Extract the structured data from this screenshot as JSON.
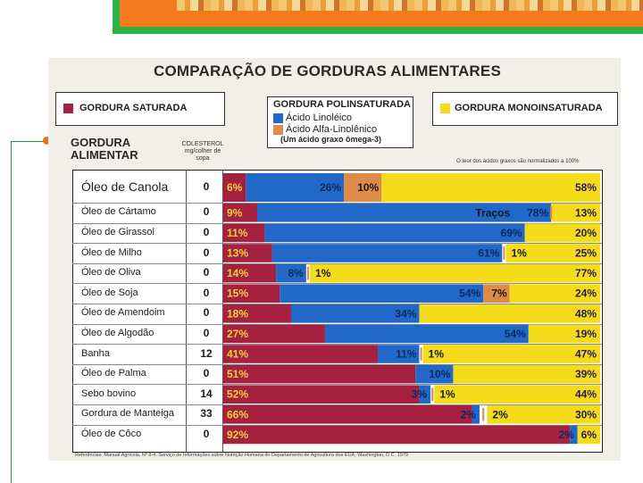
{
  "chart_data": {
    "type": "bar",
    "stacked": true,
    "normalized": true,
    "title": "COMPARAÇÃO DE GORDURAS ALIMENTARES",
    "axis_title_lines": [
      "GORDURA",
      "ALIMENTAR"
    ],
    "cholesterol_header_lines": [
      "COLESTEROL",
      "mg/colher de",
      "sopa"
    ],
    "normalization_note": "O teor dos ácidos graxos são normalizados a 100%",
    "reference": "Referências: Manual Agrícola, Nº 8-4. Serviço de Informações sobre Nutrição Humana do Departamento de Agricultura dos EUA, Washington, D.C. 1979",
    "legend": {
      "saturated": "GORDURA SATURADA",
      "poly_title": "GORDURA POLINSATURADA",
      "linoleic": "Ácido Linoléico",
      "alpha": "Ácido Alfa-Linolênico",
      "omega_note": "(Um ácido graxo ômega-3)",
      "mono": "GORDURA MONOINSATURADA"
    },
    "colors": {
      "saturated": "#a5213f",
      "linoleic": "#2168c9",
      "alpha": "#de8a48",
      "mono": "#f5dc1a"
    },
    "trace_label": "Traços",
    "rows": [
      {
        "name": "Óleo de Canola",
        "cholesterol": "0",
        "saturated": 6,
        "linoleic": 26,
        "alpha": 10,
        "mono": 58
      },
      {
        "name": "Óleo de Cártamo",
        "cholesterol": "0",
        "saturated": 9,
        "linoleic": 78,
        "alpha": 0,
        "mono": 13,
        "alpha_trace": true
      },
      {
        "name": "Óleo de Girassol",
        "cholesterol": "0",
        "saturated": 11,
        "linoleic": 69,
        "alpha": 0,
        "mono": 20
      },
      {
        "name": "Óleo de Milho",
        "cholesterol": "0",
        "saturated": 13,
        "linoleic": 61,
        "alpha": 1,
        "mono": 25
      },
      {
        "name": "Óleo de Oliva",
        "cholesterol": "0",
        "saturated": 14,
        "linoleic": 8,
        "alpha": 1,
        "mono": 77
      },
      {
        "name": "Óleo de Soja",
        "cholesterol": "0",
        "saturated": 15,
        "linoleic": 54,
        "alpha": 7,
        "mono": 24
      },
      {
        "name": "Óleo de Amendoim",
        "cholesterol": "0",
        "saturated": 18,
        "linoleic": 34,
        "alpha": 0,
        "mono": 48
      },
      {
        "name": "Óleo de Algodão",
        "cholesterol": "0",
        "saturated": 27,
        "linoleic": 54,
        "alpha": 0,
        "mono": 19
      },
      {
        "name": "Banha",
        "cholesterol": "12",
        "saturated": 41,
        "linoleic": 11,
        "alpha": 1,
        "mono": 47
      },
      {
        "name": "Óleo de Palma",
        "cholesterol": "0",
        "saturated": 51,
        "linoleic": 10,
        "alpha": 0,
        "mono": 39
      },
      {
        "name": "Sebo bovino",
        "cholesterol": "14",
        "saturated": 52,
        "linoleic": 3,
        "alpha": 1,
        "mono": 44
      },
      {
        "name": "Gordura de Manteiga",
        "cholesterol": "33",
        "saturated": 66,
        "linoleic": 2,
        "alpha": 2,
        "mono": 30
      },
      {
        "name": "Óleo de Côco",
        "cholesterol": "0",
        "saturated": 92,
        "linoleic": 2,
        "alpha": 0,
        "mono": 6
      }
    ]
  }
}
